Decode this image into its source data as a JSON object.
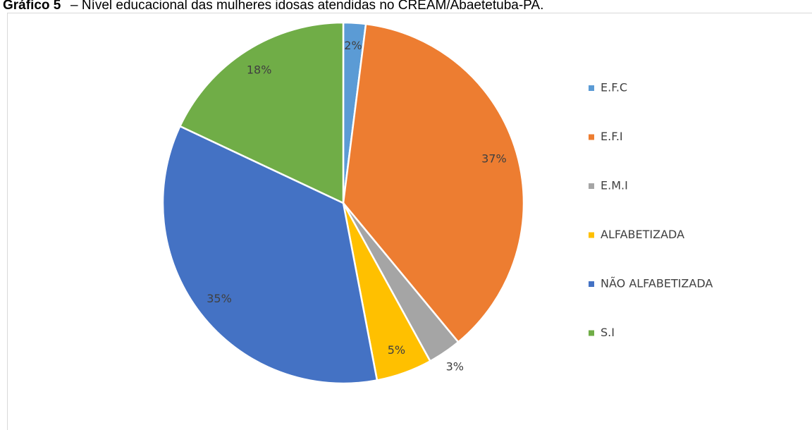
{
  "chart_data": {
    "type": "pie",
    "figure_label": "Gráfico 5",
    "title": "– Nível educacional das mulheres idosas atendidas no CREAM/Abaetetuba-PA.",
    "categories": [
      "E.F.C",
      "E.F.I",
      "E.M.I",
      "ALFABETIZADA",
      "NÃO ALFABETIZADA",
      "S.I"
    ],
    "values": [
      2,
      37,
      3,
      5,
      35,
      18
    ],
    "value_labels": [
      "2%",
      "37%",
      "3%",
      "5%",
      "35%",
      "18%"
    ],
    "colors": [
      "#5b9bd5",
      "#ed7d31",
      "#a5a5a5",
      "#ffc000",
      "#4472c4",
      "#70ad47"
    ],
    "legend": "right"
  }
}
